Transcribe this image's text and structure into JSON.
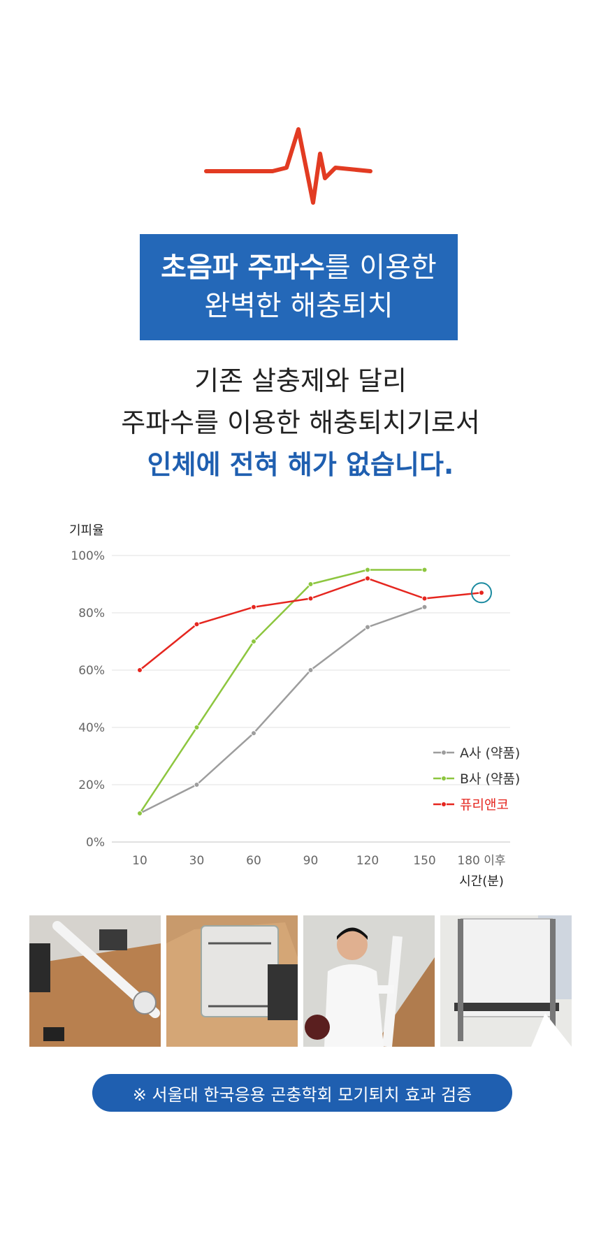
{
  "header": {
    "title_bold_1": "초음파 주파수",
    "title_rest_1": "를 이용한",
    "title_line_2": "완벽한 해충퇴치"
  },
  "intro": {
    "line_1": "기존 살충제와 달리",
    "line_2": "주파수를 이용한 해충퇴치기로서",
    "line_3": "인체에 전혀 해가 없습니다."
  },
  "chart_data": {
    "type": "line",
    "ylabel": "기피율",
    "xlabel": "시간(분)",
    "categories": [
      "10",
      "30",
      "60",
      "90",
      "120",
      "150",
      "180 이후"
    ],
    "yticks": [
      "0%",
      "20%",
      "40%",
      "60%",
      "80%",
      "100%"
    ],
    "ylim": [
      0,
      100
    ],
    "grid": true,
    "legend_position": "right",
    "series": [
      {
        "name": "A사 (약품)",
        "color": "#9d9d9d",
        "values": [
          10,
          20,
          38,
          60,
          75,
          82,
          null
        ]
      },
      {
        "name": "B사 (약품)",
        "color": "#8dc63f",
        "values": [
          10,
          40,
          70,
          90,
          95,
          95,
          null
        ]
      },
      {
        "name": "퓨리앤코",
        "color": "#e5261f",
        "values": [
          60,
          76,
          82,
          85,
          92,
          85,
          87
        ]
      }
    ],
    "highlight_color": "#1a8aa0"
  },
  "photos": [
    {
      "icon": "photo-device-on-desk"
    },
    {
      "icon": "photo-net-box"
    },
    {
      "icon": "photo-researcher"
    },
    {
      "icon": "photo-lab-box"
    }
  ],
  "footer": {
    "note": "※ 서울대 한국응용 곤충학회 모기퇴치 효과 검증"
  },
  "colors": {
    "accent_blue": "#2468b8",
    "pulse_red": "#e23b22"
  }
}
